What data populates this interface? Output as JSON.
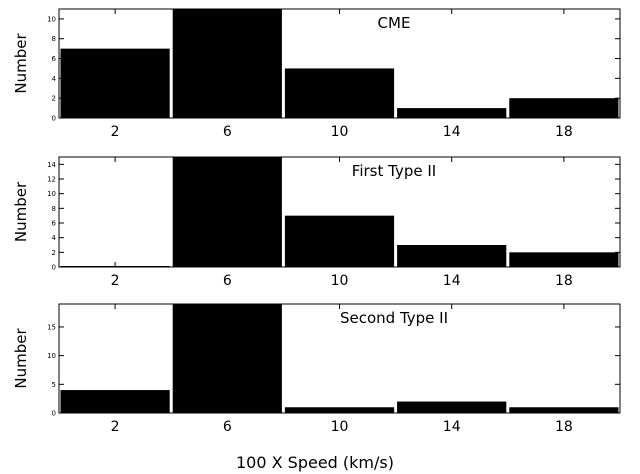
{
  "chart_data": {
    "type": "bar",
    "xlabel": "100 X Speed (km/s)",
    "bar_color": "#000000",
    "panels": [
      {
        "title": "CME",
        "ylabel": "Number",
        "categories": [
          "2",
          "6",
          "10",
          "14",
          "18"
        ],
        "values": [
          7,
          11,
          5,
          1,
          2
        ],
        "ylim": [
          0,
          11
        ],
        "yticks": [
          0,
          2,
          4,
          6,
          8,
          10
        ]
      },
      {
        "title": "First Type II",
        "ylabel": "Number",
        "categories": [
          "2",
          "6",
          "10",
          "14",
          "18"
        ],
        "values": [
          0,
          15,
          7,
          3,
          2
        ],
        "ylim": [
          0,
          15
        ],
        "yticks": [
          0,
          2,
          4,
          6,
          8,
          10,
          12,
          14
        ]
      },
      {
        "title": "Second Type II",
        "ylabel": "Number",
        "categories": [
          "2",
          "6",
          "10",
          "14",
          "18"
        ],
        "values": [
          4,
          19,
          1,
          2,
          1
        ],
        "ylim": [
          0,
          19
        ],
        "yticks": [
          0,
          5,
          10,
          15
        ]
      }
    ]
  }
}
